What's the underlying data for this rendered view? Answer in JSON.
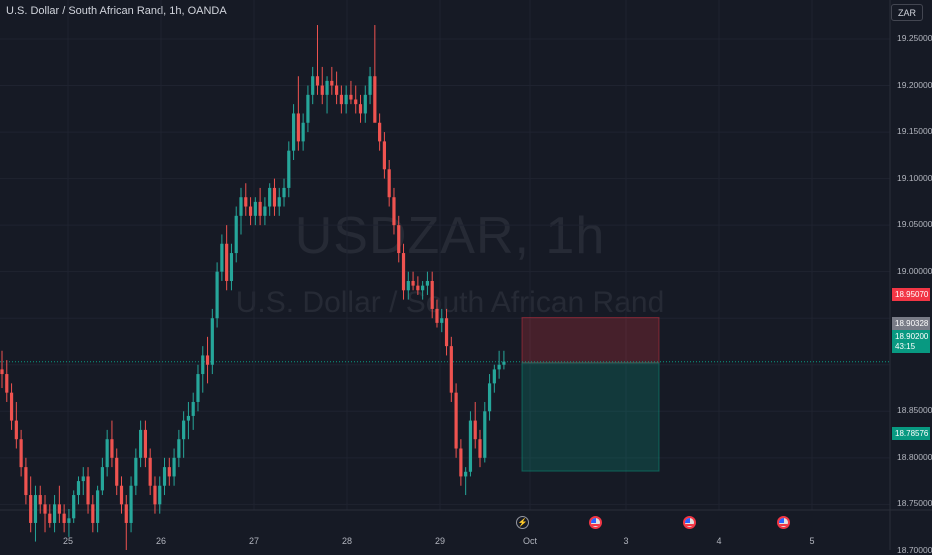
{
  "header": {
    "title": "U.S. Dollar / South African Rand, 1h, OANDA",
    "currency_button": "ZAR"
  },
  "watermark": {
    "symbol": "USDZAR, 1h",
    "name": "U.S. Dollar / South African Rand"
  },
  "price_axis": {
    "ticks": [
      "19.25000",
      "19.20000",
      "19.15000",
      "19.10000",
      "19.05000",
      "19.00000",
      "18.85000",
      "18.80000",
      "18.75000",
      "18.70000"
    ],
    "labels": {
      "stop": "18.95070",
      "current": "18.90328",
      "entry": "18.90200",
      "countdown": "43:15",
      "target": "18.78576"
    }
  },
  "time_axis": {
    "ticks": [
      "25",
      "26",
      "27",
      "28",
      "29",
      "Oct",
      "3",
      "4",
      "5"
    ]
  },
  "events": [
    "flash-event",
    "us-flag-event",
    "us-flag-event",
    "us-flag-event"
  ],
  "colors": {
    "up": "#26a69a",
    "down": "#ef5350",
    "stop_zone": "#f23645",
    "target_zone": "#089981"
  },
  "chart_data": {
    "type": "candlestick",
    "title": "U.S. Dollar / South African Rand, 1h, OANDA",
    "timeframe": "1h",
    "ylim": [
      18.69,
      19.27
    ],
    "x_ticks": [
      "25",
      "26",
      "27",
      "28",
      "29",
      "Oct",
      "3",
      "4",
      "5"
    ],
    "ohlc_hourly": [
      [
        18.895,
        18.915,
        18.875,
        18.89
      ],
      [
        18.89,
        18.905,
        18.86,
        18.87
      ],
      [
        18.87,
        18.88,
        18.83,
        18.84
      ],
      [
        18.84,
        18.86,
        18.81,
        18.82
      ],
      [
        18.82,
        18.83,
        18.78,
        18.79
      ],
      [
        18.79,
        18.8,
        18.75,
        18.76
      ],
      [
        18.76,
        18.78,
        18.72,
        18.73
      ],
      [
        18.73,
        18.77,
        18.71,
        18.76
      ],
      [
        18.76,
        18.77,
        18.74,
        18.75
      ],
      [
        18.75,
        18.76,
        18.72,
        18.74
      ],
      [
        18.74,
        18.75,
        18.725,
        18.73
      ],
      [
        18.73,
        18.76,
        18.72,
        18.75
      ],
      [
        18.75,
        18.77,
        18.73,
        18.74
      ],
      [
        18.74,
        18.75,
        18.72,
        18.73
      ],
      [
        18.73,
        18.745,
        18.715,
        18.735
      ],
      [
        18.735,
        18.765,
        18.73,
        18.76
      ],
      [
        18.76,
        18.78,
        18.75,
        18.775
      ],
      [
        18.775,
        18.79,
        18.76,
        18.78
      ],
      [
        18.78,
        18.79,
        18.74,
        18.75
      ],
      [
        18.75,
        18.76,
        18.72,
        18.73
      ],
      [
        18.73,
        18.77,
        18.72,
        18.765
      ],
      [
        18.765,
        18.8,
        18.76,
        18.79
      ],
      [
        18.79,
        18.83,
        18.78,
        18.82
      ],
      [
        18.82,
        18.84,
        18.79,
        18.8
      ],
      [
        18.8,
        18.81,
        18.76,
        18.77
      ],
      [
        18.77,
        18.78,
        18.74,
        18.75
      ],
      [
        18.75,
        18.76,
        18.7,
        18.73
      ],
      [
        18.73,
        18.78,
        18.72,
        18.77
      ],
      [
        18.77,
        18.81,
        18.76,
        18.8
      ],
      [
        18.8,
        18.84,
        18.79,
        18.83
      ],
      [
        18.83,
        18.84,
        18.79,
        18.8
      ],
      [
        18.8,
        18.81,
        18.76,
        18.77
      ],
      [
        18.77,
        18.78,
        18.74,
        18.75
      ],
      [
        18.75,
        18.78,
        18.74,
        18.77
      ],
      [
        18.77,
        18.8,
        18.76,
        18.79
      ],
      [
        18.79,
        18.8,
        18.77,
        18.78
      ],
      [
        18.78,
        18.81,
        18.77,
        18.8
      ],
      [
        18.8,
        18.83,
        18.79,
        18.82
      ],
      [
        18.82,
        18.85,
        18.8,
        18.84
      ],
      [
        18.84,
        18.86,
        18.82,
        18.845
      ],
      [
        18.845,
        18.87,
        18.83,
        18.86
      ],
      [
        18.86,
        18.9,
        18.85,
        18.89
      ],
      [
        18.89,
        18.92,
        18.87,
        18.91
      ],
      [
        18.91,
        18.93,
        18.88,
        18.9
      ],
      [
        18.9,
        18.96,
        18.89,
        18.95
      ],
      [
        18.95,
        19.01,
        18.94,
        19.0
      ],
      [
        19.0,
        19.04,
        18.99,
        19.03
      ],
      [
        19.03,
        19.05,
        18.98,
        18.99
      ],
      [
        18.99,
        19.03,
        18.98,
        19.02
      ],
      [
        19.02,
        19.07,
        19.01,
        19.06
      ],
      [
        19.06,
        19.09,
        19.04,
        19.08
      ],
      [
        19.08,
        19.095,
        19.06,
        19.07
      ],
      [
        19.07,
        19.08,
        19.05,
        19.06
      ],
      [
        19.06,
        19.08,
        19.05,
        19.075
      ],
      [
        19.075,
        19.09,
        19.05,
        19.06
      ],
      [
        19.06,
        19.08,
        19.05,
        19.07
      ],
      [
        19.07,
        19.095,
        19.06,
        19.09
      ],
      [
        19.09,
        19.1,
        19.06,
        19.07
      ],
      [
        19.07,
        19.09,
        19.06,
        19.08
      ],
      [
        19.08,
        19.1,
        19.07,
        19.09
      ],
      [
        19.09,
        19.14,
        19.08,
        19.13
      ],
      [
        19.13,
        19.18,
        19.12,
        19.17
      ],
      [
        19.17,
        19.21,
        19.13,
        19.14
      ],
      [
        19.14,
        19.17,
        19.13,
        19.16
      ],
      [
        19.16,
        19.2,
        19.15,
        19.19
      ],
      [
        19.19,
        19.22,
        19.18,
        19.21
      ],
      [
        19.21,
        19.265,
        19.19,
        19.2
      ],
      [
        19.2,
        19.22,
        19.18,
        19.19
      ],
      [
        19.19,
        19.21,
        19.17,
        19.205
      ],
      [
        19.205,
        19.22,
        19.19,
        19.2
      ],
      [
        19.2,
        19.215,
        19.18,
        19.19
      ],
      [
        19.19,
        19.2,
        19.17,
        19.18
      ],
      [
        19.18,
        19.2,
        19.17,
        19.19
      ],
      [
        19.19,
        19.205,
        19.18,
        19.185
      ],
      [
        19.185,
        19.2,
        19.17,
        19.18
      ],
      [
        19.18,
        19.19,
        19.16,
        19.17
      ],
      [
        19.17,
        19.2,
        19.16,
        19.19
      ],
      [
        19.19,
        19.22,
        19.18,
        19.21
      ],
      [
        19.21,
        19.265,
        19.2,
        19.16
      ],
      [
        19.16,
        19.17,
        19.13,
        19.14
      ],
      [
        19.14,
        19.15,
        19.1,
        19.11
      ],
      [
        19.11,
        19.12,
        19.07,
        19.08
      ],
      [
        19.08,
        19.09,
        19.04,
        19.05
      ],
      [
        19.05,
        19.06,
        19.01,
        19.02
      ],
      [
        19.02,
        19.03,
        18.97,
        18.98
      ],
      [
        18.98,
        19.0,
        18.97,
        18.99
      ],
      [
        18.99,
        19.0,
        18.98,
        18.985
      ],
      [
        18.985,
        18.995,
        18.975,
        18.98
      ],
      [
        18.98,
        18.99,
        18.97,
        18.985
      ],
      [
        18.985,
        19.0,
        18.975,
        18.99
      ],
      [
        18.99,
        19.0,
        18.95,
        18.96
      ],
      [
        18.96,
        18.97,
        18.94,
        18.945
      ],
      [
        18.945,
        18.96,
        18.935,
        18.95
      ],
      [
        18.95,
        18.96,
        18.91,
        18.92
      ],
      [
        18.92,
        18.93,
        18.86,
        18.87
      ],
      [
        18.87,
        18.88,
        18.8,
        18.81
      ],
      [
        18.81,
        18.82,
        18.77,
        18.78
      ],
      [
        18.78,
        18.79,
        18.76,
        18.785
      ],
      [
        18.785,
        18.85,
        18.78,
        18.84
      ],
      [
        18.84,
        18.86,
        18.81,
        18.82
      ],
      [
        18.82,
        18.83,
        18.79,
        18.8
      ],
      [
        18.8,
        18.86,
        18.795,
        18.85
      ],
      [
        18.85,
        18.89,
        18.84,
        18.88
      ],
      [
        18.88,
        18.9,
        18.87,
        18.895
      ],
      [
        18.895,
        18.915,
        18.885,
        18.9
      ],
      [
        18.9,
        18.915,
        18.895,
        18.90328
      ]
    ],
    "position": {
      "stop_loss": 18.9507,
      "entry": 18.902,
      "take_profit": 18.78576,
      "current_price": 18.90328,
      "countdown": "43:15"
    }
  }
}
